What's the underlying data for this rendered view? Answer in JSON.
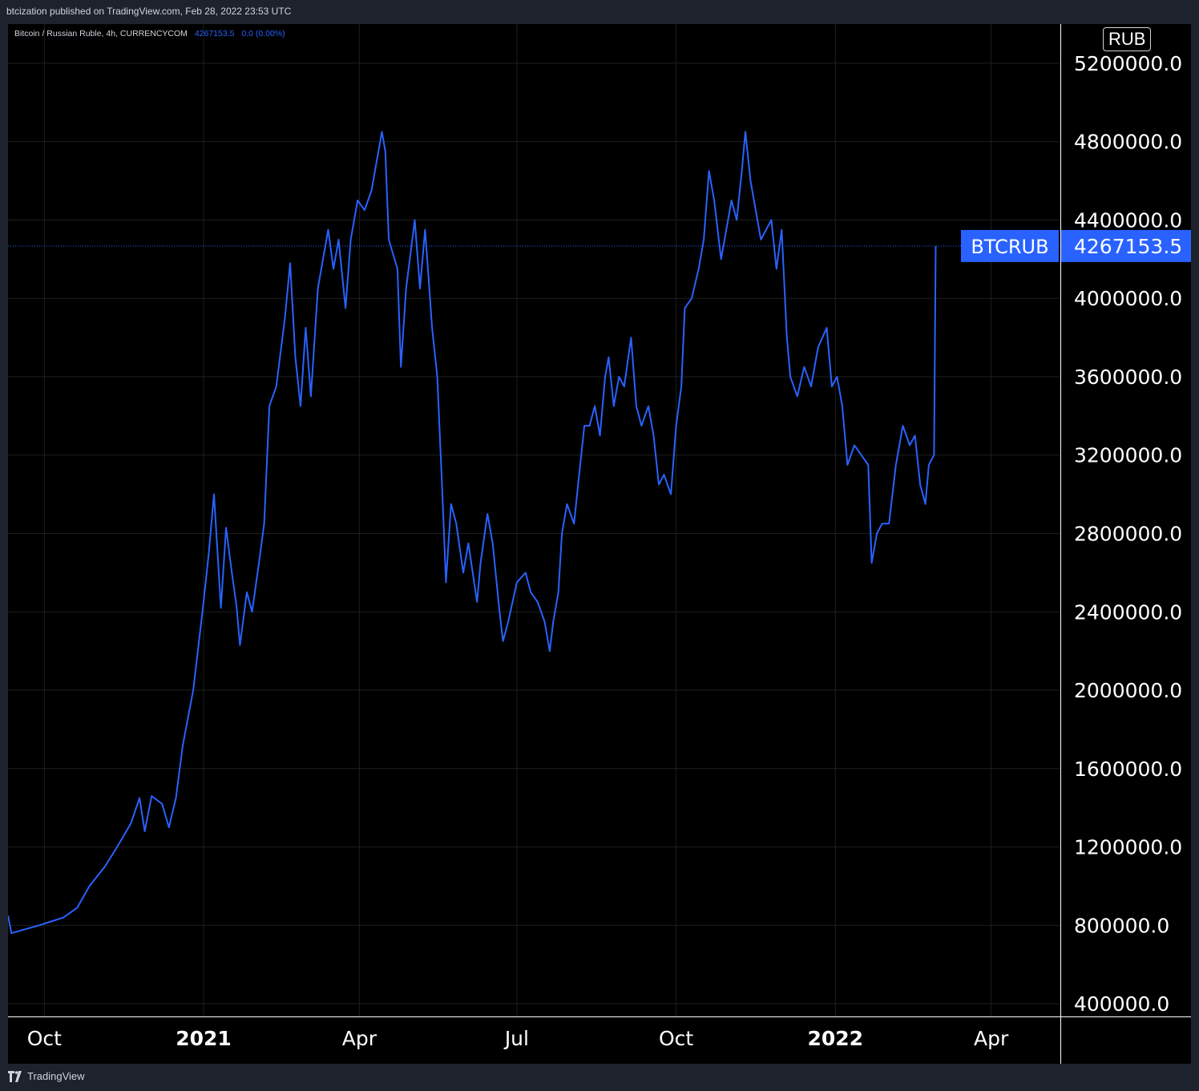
{
  "header": {
    "published": "btcization published on TradingView.com, Feb 28, 2022 23:53 UTC"
  },
  "legend": {
    "symbol": "Bitcoin / Russian Ruble, 4h, CURRENCYCOM",
    "value": "4267153.5",
    "change": "0.0 (0.00%)"
  },
  "currency_badge": "RUB",
  "footer": {
    "brand": "TradingView"
  },
  "colors": {
    "line": "#2962ff",
    "price_label_bg": "#2962ff",
    "grid": "#1f1f1f",
    "background": "#000000",
    "frame": "#1e222d"
  },
  "chart_data": {
    "type": "line",
    "title": "",
    "xlabel": "",
    "ylabel": "",
    "series": [
      {
        "name": "BTCRUB",
        "points": [
          [
            "2020-09-10",
            850000
          ],
          [
            "2020-09-12",
            760000
          ],
          [
            "2020-09-20",
            780000
          ],
          [
            "2020-09-28",
            800000
          ],
          [
            "2020-10-05",
            820000
          ],
          [
            "2020-10-12",
            840000
          ],
          [
            "2020-10-20",
            890000
          ],
          [
            "2020-10-27",
            1000000
          ],
          [
            "2020-11-05",
            1100000
          ],
          [
            "2020-11-12",
            1200000
          ],
          [
            "2020-11-20",
            1320000
          ],
          [
            "2020-11-25",
            1450000
          ],
          [
            "2020-11-28",
            1280000
          ],
          [
            "2020-12-02",
            1460000
          ],
          [
            "2020-12-08",
            1420000
          ],
          [
            "2020-12-12",
            1300000
          ],
          [
            "2020-12-16",
            1450000
          ],
          [
            "2020-12-20",
            1720000
          ],
          [
            "2020-12-26",
            2000000
          ],
          [
            "2021-01-01",
            2450000
          ],
          [
            "2021-01-04",
            2700000
          ],
          [
            "2021-01-07",
            3000000
          ],
          [
            "2021-01-11",
            2420000
          ],
          [
            "2021-01-14",
            2830000
          ],
          [
            "2021-01-17",
            2620000
          ],
          [
            "2021-01-20",
            2430000
          ],
          [
            "2021-01-22",
            2230000
          ],
          [
            "2021-01-26",
            2500000
          ],
          [
            "2021-01-29",
            2400000
          ],
          [
            "2021-02-02",
            2650000
          ],
          [
            "2021-02-05",
            2850000
          ],
          [
            "2021-02-08",
            3450000
          ],
          [
            "2021-02-12",
            3550000
          ],
          [
            "2021-02-17",
            3900000
          ],
          [
            "2021-02-20",
            4180000
          ],
          [
            "2021-02-23",
            3700000
          ],
          [
            "2021-02-26",
            3450000
          ],
          [
            "2021-03-01",
            3850000
          ],
          [
            "2021-03-04",
            3500000
          ],
          [
            "2021-03-08",
            4050000
          ],
          [
            "2021-03-11",
            4200000
          ],
          [
            "2021-03-14",
            4350000
          ],
          [
            "2021-03-17",
            4150000
          ],
          [
            "2021-03-20",
            4300000
          ],
          [
            "2021-03-24",
            3950000
          ],
          [
            "2021-03-27",
            4300000
          ],
          [
            "2021-03-31",
            4500000
          ],
          [
            "2021-04-04",
            4450000
          ],
          [
            "2021-04-08",
            4550000
          ],
          [
            "2021-04-11",
            4700000
          ],
          [
            "2021-04-14",
            4850000
          ],
          [
            "2021-04-16",
            4750000
          ],
          [
            "2021-04-18",
            4300000
          ],
          [
            "2021-04-23",
            4150000
          ],
          [
            "2021-04-25",
            3650000
          ],
          [
            "2021-04-28",
            4050000
          ],
          [
            "2021-05-03",
            4400000
          ],
          [
            "2021-05-06",
            4050000
          ],
          [
            "2021-05-09",
            4350000
          ],
          [
            "2021-05-11",
            4100000
          ],
          [
            "2021-05-13",
            3850000
          ],
          [
            "2021-05-16",
            3600000
          ],
          [
            "2021-05-19",
            3000000
          ],
          [
            "2021-05-21",
            2550000
          ],
          [
            "2021-05-24",
            2950000
          ],
          [
            "2021-05-27",
            2850000
          ],
          [
            "2021-05-31",
            2600000
          ],
          [
            "2021-06-03",
            2750000
          ],
          [
            "2021-06-08",
            2450000
          ],
          [
            "2021-06-10",
            2650000
          ],
          [
            "2021-06-14",
            2900000
          ],
          [
            "2021-06-17",
            2750000
          ],
          [
            "2021-06-21",
            2400000
          ],
          [
            "2021-06-23",
            2250000
          ],
          [
            "2021-06-26",
            2350000
          ],
          [
            "2021-07-01",
            2550000
          ],
          [
            "2021-07-06",
            2600000
          ],
          [
            "2021-07-09",
            2500000
          ],
          [
            "2021-07-13",
            2450000
          ],
          [
            "2021-07-17",
            2350000
          ],
          [
            "2021-07-20",
            2200000
          ],
          [
            "2021-07-22",
            2350000
          ],
          [
            "2021-07-25",
            2500000
          ],
          [
            "2021-07-27",
            2800000
          ],
          [
            "2021-07-30",
            2950000
          ],
          [
            "2021-08-03",
            2850000
          ],
          [
            "2021-08-06",
            3100000
          ],
          [
            "2021-08-09",
            3350000
          ],
          [
            "2021-08-12",
            3350000
          ],
          [
            "2021-08-15",
            3450000
          ],
          [
            "2021-08-18",
            3300000
          ],
          [
            "2021-08-21",
            3600000
          ],
          [
            "2021-08-23",
            3700000
          ],
          [
            "2021-08-26",
            3450000
          ],
          [
            "2021-08-29",
            3600000
          ],
          [
            "2021-09-01",
            3550000
          ],
          [
            "2021-09-05",
            3800000
          ],
          [
            "2021-09-08",
            3450000
          ],
          [
            "2021-09-11",
            3350000
          ],
          [
            "2021-09-15",
            3450000
          ],
          [
            "2021-09-18",
            3300000
          ],
          [
            "2021-09-21",
            3050000
          ],
          [
            "2021-09-24",
            3100000
          ],
          [
            "2021-09-28",
            3000000
          ],
          [
            "2021-10-01",
            3350000
          ],
          [
            "2021-10-04",
            3550000
          ],
          [
            "2021-10-06",
            3950000
          ],
          [
            "2021-10-10",
            4000000
          ],
          [
            "2021-10-14",
            4150000
          ],
          [
            "2021-10-17",
            4300000
          ],
          [
            "2021-10-20",
            4650000
          ],
          [
            "2021-10-23",
            4500000
          ],
          [
            "2021-10-27",
            4200000
          ],
          [
            "2021-10-30",
            4350000
          ],
          [
            "2021-11-02",
            4500000
          ],
          [
            "2021-11-05",
            4400000
          ],
          [
            "2021-11-08",
            4650000
          ],
          [
            "2021-11-10",
            4850000
          ],
          [
            "2021-11-13",
            4600000
          ],
          [
            "2021-11-16",
            4450000
          ],
          [
            "2021-11-19",
            4300000
          ],
          [
            "2021-11-22",
            4350000
          ],
          [
            "2021-11-25",
            4400000
          ],
          [
            "2021-11-28",
            4150000
          ],
          [
            "2021-12-01",
            4350000
          ],
          [
            "2021-12-04",
            3800000
          ],
          [
            "2021-12-06",
            3600000
          ],
          [
            "2021-12-10",
            3500000
          ],
          [
            "2021-12-14",
            3650000
          ],
          [
            "2021-12-18",
            3550000
          ],
          [
            "2021-12-22",
            3750000
          ],
          [
            "2021-12-27",
            3850000
          ],
          [
            "2021-12-30",
            3550000
          ],
          [
            "2022-01-02",
            3600000
          ],
          [
            "2022-01-05",
            3450000
          ],
          [
            "2022-01-08",
            3150000
          ],
          [
            "2022-01-12",
            3250000
          ],
          [
            "2022-01-16",
            3200000
          ],
          [
            "2022-01-20",
            3150000
          ],
          [
            "2022-01-22",
            2650000
          ],
          [
            "2022-01-25",
            2800000
          ],
          [
            "2022-01-28",
            2850000
          ],
          [
            "2022-02-01",
            2850000
          ],
          [
            "2022-02-05",
            3150000
          ],
          [
            "2022-02-09",
            3350000
          ],
          [
            "2022-02-13",
            3250000
          ],
          [
            "2022-02-16",
            3300000
          ],
          [
            "2022-02-19",
            3050000
          ],
          [
            "2022-02-22",
            2950000
          ],
          [
            "2022-02-24",
            3150000
          ],
          [
            "2022-02-27",
            3200000
          ],
          [
            "2022-02-28",
            4267153.5
          ]
        ]
      }
    ],
    "x_ticks": [
      {
        "label": "Oct",
        "date": "2020-10-01",
        "bold": false
      },
      {
        "label": "2021",
        "date": "2021-01-01",
        "bold": true
      },
      {
        "label": "Apr",
        "date": "2021-04-01",
        "bold": false
      },
      {
        "label": "Jul",
        "date": "2021-07-01",
        "bold": false
      },
      {
        "label": "Oct",
        "date": "2021-10-01",
        "bold": false
      },
      {
        "label": "2022",
        "date": "2022-01-01",
        "bold": true
      },
      {
        "label": "Apr",
        "date": "2022-04-01",
        "bold": false
      }
    ],
    "x_range": [
      "2020-09-10",
      "2022-05-11"
    ],
    "y_ticks": [
      "400000.0",
      "800000.0",
      "1200000.0",
      "1600000.0",
      "2000000.0",
      "2400000.0",
      "2800000.0",
      "3200000.0",
      "3600000.0",
      "4000000.0",
      "4400000.0",
      "4800000.0",
      "5200000.0"
    ],
    "y_range": [
      335000,
      5400000
    ],
    "last_price": {
      "value": 4267153.5,
      "label": "4267153.5",
      "symbol_label": "BTCRUB"
    },
    "grid": true,
    "legend": "top-left"
  }
}
